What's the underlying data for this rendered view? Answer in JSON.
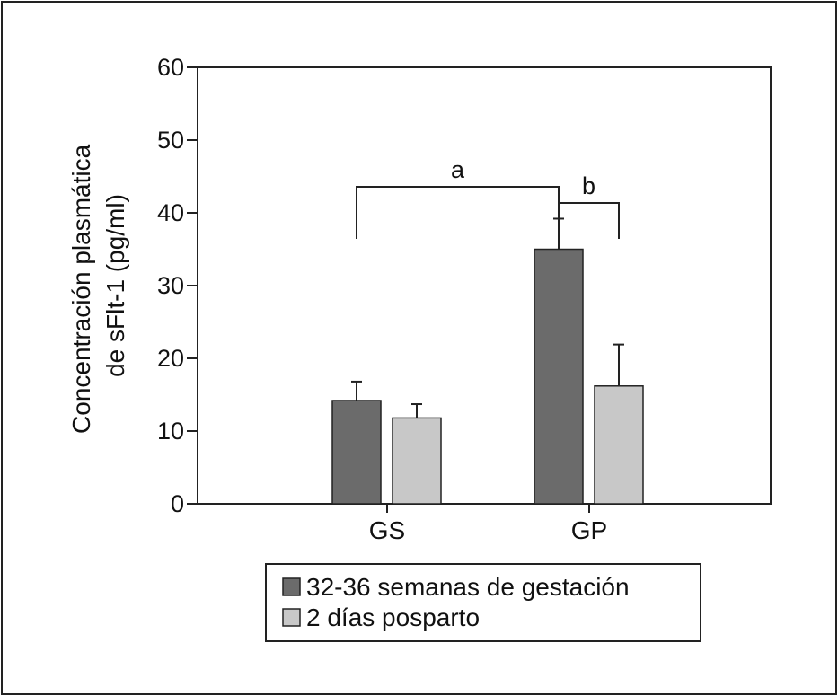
{
  "chart_data": {
    "type": "bar",
    "title": "",
    "xlabel": "",
    "ylabel": [
      "Concentración plasmática",
      "de sFlt-1 (pg/ml)"
    ],
    "ylim": [
      0,
      60
    ],
    "yticks": [
      0,
      10,
      20,
      30,
      40,
      50,
      60
    ],
    "categories": [
      "GS",
      "GP"
    ],
    "series": [
      {
        "name": "32-36 semanas de gestación",
        "color": "#6b6b6b",
        "values": [
          14.2,
          35.0
        ],
        "errors": [
          2.6,
          4.2
        ]
      },
      {
        "name": "2 días posparto",
        "color": "#c8c8c8",
        "values": [
          11.8,
          16.2
        ],
        "errors": [
          1.9,
          5.7
        ]
      }
    ],
    "annotations": [
      {
        "label": "a",
        "from": {
          "category": 0,
          "series": 0
        },
        "to": {
          "category": 1,
          "series": 0
        }
      },
      {
        "label": "b",
        "from": {
          "category": 1,
          "series": 0
        },
        "to": {
          "category": 1,
          "series": 1
        }
      }
    ],
    "grid": false,
    "legend_position": "bottom-center"
  }
}
